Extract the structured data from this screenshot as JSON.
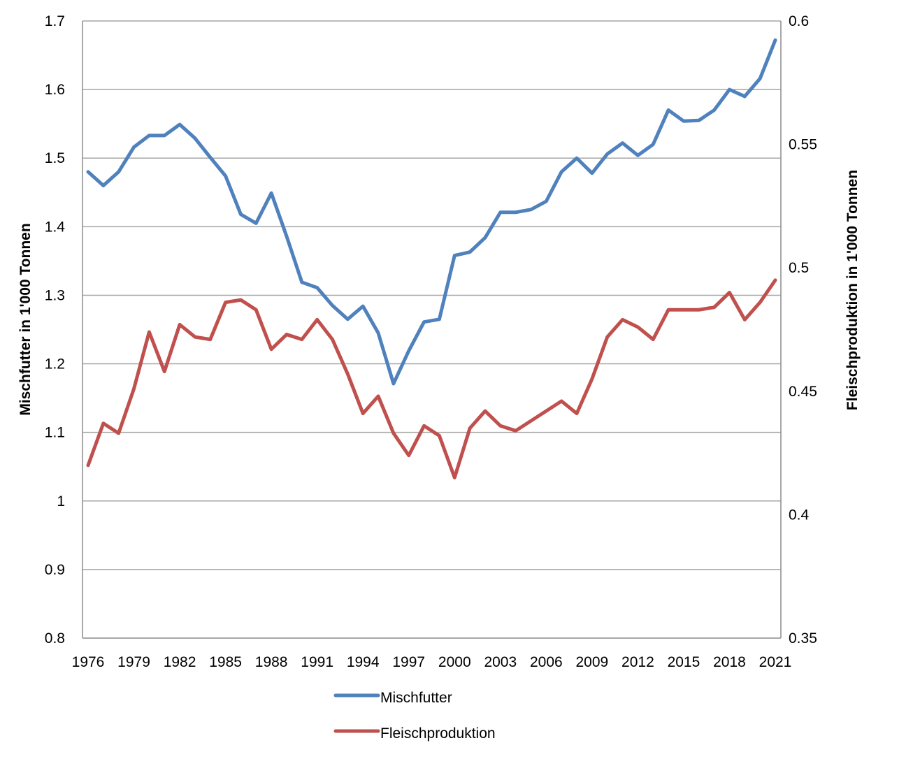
{
  "chart_data": {
    "type": "line",
    "categories": [
      1976,
      1977,
      1978,
      1979,
      1980,
      1981,
      1982,
      1983,
      1984,
      1985,
      1986,
      1987,
      1988,
      1989,
      1990,
      1991,
      1992,
      1993,
      1994,
      1995,
      1996,
      1997,
      1998,
      1999,
      2000,
      2001,
      2002,
      2003,
      2004,
      2005,
      2006,
      2007,
      2008,
      2009,
      2010,
      2011,
      2012,
      2013,
      2014,
      2015,
      2016,
      2017,
      2018,
      2019,
      2020,
      2021
    ],
    "x_tick_labels": [
      "1976",
      "1979",
      "1982",
      "1985",
      "1988",
      "1991",
      "1994",
      "1997",
      "2000",
      "2003",
      "2006",
      "2009",
      "2012",
      "2015",
      "2018",
      "2021"
    ],
    "series": [
      {
        "name": "Mischfutter",
        "axis": "left",
        "color": "#4f81bd",
        "values": [
          1.48,
          1.46,
          1.48,
          1.516,
          1.533,
          1.533,
          1.549,
          1.529,
          1.501,
          1.474,
          1.418,
          1.405,
          1.449,
          1.386,
          1.319,
          1.311,
          1.285,
          1.265,
          1.284,
          1.245,
          1.171,
          1.219,
          1.261,
          1.265,
          1.358,
          1.363,
          1.384,
          1.421,
          1.421,
          1.425,
          1.437,
          1.48,
          1.5,
          1.478,
          1.506,
          1.522,
          1.504,
          1.52,
          1.57,
          1.554,
          1.555,
          1.57,
          1.6,
          1.59,
          1.616,
          1.672
        ]
      },
      {
        "name": "Fleischproduktion",
        "axis": "right",
        "color": "#c0504d",
        "values": [
          0.42,
          0.437,
          0.433,
          0.451,
          0.474,
          0.458,
          0.477,
          0.472,
          0.471,
          0.486,
          0.487,
          0.483,
          0.467,
          0.473,
          0.471,
          0.479,
          0.471,
          0.457,
          0.441,
          0.448,
          0.433,
          0.424,
          0.436,
          0.432,
          0.415,
          0.435,
          0.442,
          0.436,
          0.434,
          0.438,
          0.442,
          0.446,
          0.441,
          0.455,
          0.472,
          0.479,
          0.476,
          0.471,
          0.483,
          0.483,
          0.483,
          0.484,
          0.49,
          0.479,
          0.486,
          0.495
        ]
      }
    ],
    "left_axis": {
      "label": "Mischfutter in 1'000 Tonnen",
      "ylim": [
        0.8,
        1.7
      ],
      "ticks": [
        "0.8",
        "0.9",
        "1",
        "1.1",
        "1.2",
        "1.3",
        "1.4",
        "1.5",
        "1.6",
        "1.7"
      ]
    },
    "right_axis": {
      "label": "Fleischproduktion in 1'000 Tonnen",
      "ylim": [
        0.35,
        0.6
      ],
      "ticks": [
        "0.35",
        "0.4",
        "0.45",
        "0.5",
        "0.55",
        "0.6"
      ]
    },
    "grid": true,
    "legend_position": "bottom"
  }
}
